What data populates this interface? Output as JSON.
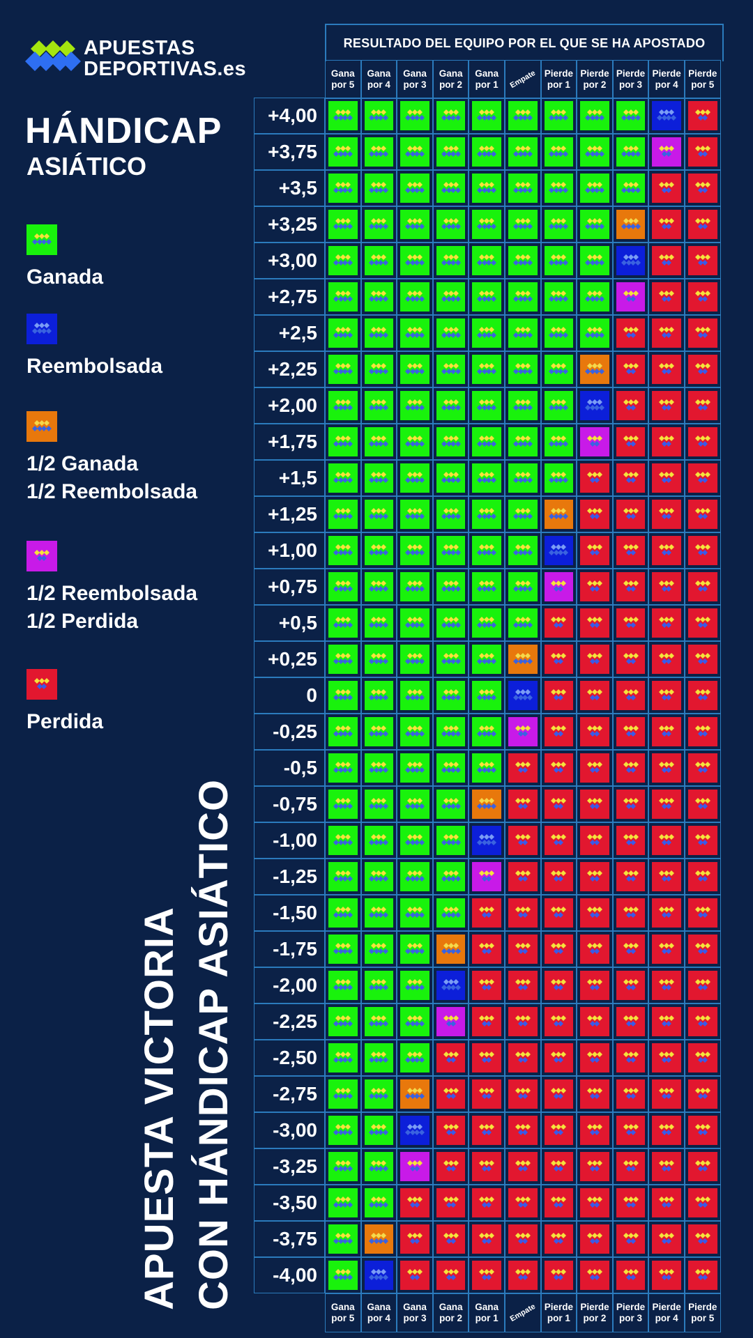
{
  "brand": {
    "line1": "APUESTAS",
    "line2": "DEPORTIVAS.es"
  },
  "title": "HÁNDICAP",
  "subtitle": "ASIÁTICO",
  "vertical_title": {
    "line1": "APUESTA VICTORIA",
    "line2": "CON HÁNDICAP ASIÁTICO"
  },
  "legend": [
    {
      "key": "W",
      "lines": [
        "Ganada"
      ]
    },
    {
      "key": "R",
      "lines": [
        "Reembolsada"
      ]
    },
    {
      "key": "HW",
      "lines": [
        "1/2 Ganada",
        "1/2 Reembolsada"
      ]
    },
    {
      "key": "HL",
      "lines": [
        "1/2 Reembolsada",
        "1/2 Perdida"
      ]
    },
    {
      "key": "L",
      "lines": [
        "Perdida"
      ]
    }
  ],
  "colors": {
    "W": "#19f20c",
    "R": "#0c1fd9",
    "HW": "#e8780c",
    "HL": "#c81ae8",
    "L": "#e2172f",
    "background": "#0b2147",
    "grid": "#2b7bbd"
  },
  "chart_data": {
    "type": "table",
    "header": "RESULTADO DEL EQUIPO POR EL QUE SE HA APOSTADO",
    "columns": [
      [
        "Gana",
        "por 5"
      ],
      [
        "Gana",
        "por 4"
      ],
      [
        "Gana",
        "por 3"
      ],
      [
        "Gana",
        "por 2"
      ],
      [
        "Gana",
        "por 1"
      ],
      [
        "Empate"
      ],
      [
        "Pierde",
        "por 1"
      ],
      [
        "Pierde",
        "por 2"
      ],
      [
        "Pierde",
        "por 3"
      ],
      [
        "Pierde",
        "por 4"
      ],
      [
        "Pierde",
        "por 5"
      ]
    ],
    "rows": [
      {
        "handicap": "+4,00",
        "cells": [
          "W",
          "W",
          "W",
          "W",
          "W",
          "W",
          "W",
          "W",
          "W",
          "R",
          "L"
        ]
      },
      {
        "handicap": "+3,75",
        "cells": [
          "W",
          "W",
          "W",
          "W",
          "W",
          "W",
          "W",
          "W",
          "W",
          "HL",
          "L"
        ]
      },
      {
        "handicap": "+3,5",
        "cells": [
          "W",
          "W",
          "W",
          "W",
          "W",
          "W",
          "W",
          "W",
          "W",
          "L",
          "L"
        ]
      },
      {
        "handicap": "+3,25",
        "cells": [
          "W",
          "W",
          "W",
          "W",
          "W",
          "W",
          "W",
          "W",
          "HW",
          "L",
          "L"
        ]
      },
      {
        "handicap": "+3,00",
        "cells": [
          "W",
          "W",
          "W",
          "W",
          "W",
          "W",
          "W",
          "W",
          "R",
          "L",
          "L"
        ]
      },
      {
        "handicap": "+2,75",
        "cells": [
          "W",
          "W",
          "W",
          "W",
          "W",
          "W",
          "W",
          "W",
          "HL",
          "L",
          "L"
        ]
      },
      {
        "handicap": "+2,5",
        "cells": [
          "W",
          "W",
          "W",
          "W",
          "W",
          "W",
          "W",
          "W",
          "L",
          "L",
          "L"
        ]
      },
      {
        "handicap": "+2,25",
        "cells": [
          "W",
          "W",
          "W",
          "W",
          "W",
          "W",
          "W",
          "HW",
          "L",
          "L",
          "L"
        ]
      },
      {
        "handicap": "+2,00",
        "cells": [
          "W",
          "W",
          "W",
          "W",
          "W",
          "W",
          "W",
          "R",
          "L",
          "L",
          "L"
        ]
      },
      {
        "handicap": "+1,75",
        "cells": [
          "W",
          "W",
          "W",
          "W",
          "W",
          "W",
          "W",
          "HL",
          "L",
          "L",
          "L"
        ]
      },
      {
        "handicap": "+1,5",
        "cells": [
          "W",
          "W",
          "W",
          "W",
          "W",
          "W",
          "W",
          "L",
          "L",
          "L",
          "L"
        ]
      },
      {
        "handicap": "+1,25",
        "cells": [
          "W",
          "W",
          "W",
          "W",
          "W",
          "W",
          "HW",
          "L",
          "L",
          "L",
          "L"
        ]
      },
      {
        "handicap": "+1,00",
        "cells": [
          "W",
          "W",
          "W",
          "W",
          "W",
          "W",
          "R",
          "L",
          "L",
          "L",
          "L"
        ]
      },
      {
        "handicap": "+0,75",
        "cells": [
          "W",
          "W",
          "W",
          "W",
          "W",
          "W",
          "HL",
          "L",
          "L",
          "L",
          "L"
        ]
      },
      {
        "handicap": "+0,5",
        "cells": [
          "W",
          "W",
          "W",
          "W",
          "W",
          "W",
          "L",
          "L",
          "L",
          "L",
          "L"
        ]
      },
      {
        "handicap": "+0,25",
        "cells": [
          "W",
          "W",
          "W",
          "W",
          "W",
          "HW",
          "L",
          "L",
          "L",
          "L",
          "L"
        ]
      },
      {
        "handicap": "0",
        "cells": [
          "W",
          "W",
          "W",
          "W",
          "W",
          "R",
          "L",
          "L",
          "L",
          "L",
          "L"
        ]
      },
      {
        "handicap": "-0,25",
        "cells": [
          "W",
          "W",
          "W",
          "W",
          "W",
          "HL",
          "L",
          "L",
          "L",
          "L",
          "L"
        ]
      },
      {
        "handicap": "-0,5",
        "cells": [
          "W",
          "W",
          "W",
          "W",
          "W",
          "L",
          "L",
          "L",
          "L",
          "L",
          "L"
        ]
      },
      {
        "handicap": "-0,75",
        "cells": [
          "W",
          "W",
          "W",
          "W",
          "HW",
          "L",
          "L",
          "L",
          "L",
          "L",
          "L"
        ]
      },
      {
        "handicap": "-1,00",
        "cells": [
          "W",
          "W",
          "W",
          "W",
          "R",
          "L",
          "L",
          "L",
          "L",
          "L",
          "L"
        ]
      },
      {
        "handicap": "-1,25",
        "cells": [
          "W",
          "W",
          "W",
          "W",
          "HL",
          "L",
          "L",
          "L",
          "L",
          "L",
          "L"
        ]
      },
      {
        "handicap": "-1,50",
        "cells": [
          "W",
          "W",
          "W",
          "W",
          "L",
          "L",
          "L",
          "L",
          "L",
          "L",
          "L"
        ]
      },
      {
        "handicap": "-1,75",
        "cells": [
          "W",
          "W",
          "W",
          "HW",
          "L",
          "L",
          "L",
          "L",
          "L",
          "L",
          "L"
        ]
      },
      {
        "handicap": "-2,00",
        "cells": [
          "W",
          "W",
          "W",
          "R",
          "L",
          "L",
          "L",
          "L",
          "L",
          "L",
          "L"
        ]
      },
      {
        "handicap": "-2,25",
        "cells": [
          "W",
          "W",
          "W",
          "HL",
          "L",
          "L",
          "L",
          "L",
          "L",
          "L",
          "L"
        ]
      },
      {
        "handicap": "-2,50",
        "cells": [
          "W",
          "W",
          "W",
          "L",
          "L",
          "L",
          "L",
          "L",
          "L",
          "L",
          "L"
        ]
      },
      {
        "handicap": "-2,75",
        "cells": [
          "W",
          "W",
          "HW",
          "L",
          "L",
          "L",
          "L",
          "L",
          "L",
          "L",
          "L"
        ]
      },
      {
        "handicap": "-3,00",
        "cells": [
          "W",
          "W",
          "R",
          "L",
          "L",
          "L",
          "L",
          "L",
          "L",
          "L",
          "L"
        ]
      },
      {
        "handicap": "-3,25",
        "cells": [
          "W",
          "W",
          "HL",
          "L",
          "L",
          "L",
          "L",
          "L",
          "L",
          "L",
          "L"
        ]
      },
      {
        "handicap": "-3,50",
        "cells": [
          "W",
          "W",
          "L",
          "L",
          "L",
          "L",
          "L",
          "L",
          "L",
          "L",
          "L"
        ]
      },
      {
        "handicap": "-3,75",
        "cells": [
          "W",
          "HW",
          "L",
          "L",
          "L",
          "L",
          "L",
          "L",
          "L",
          "L",
          "L"
        ]
      },
      {
        "handicap": "-4,00",
        "cells": [
          "W",
          "R",
          "L",
          "L",
          "L",
          "L",
          "L",
          "L",
          "L",
          "L",
          "L"
        ]
      }
    ]
  }
}
